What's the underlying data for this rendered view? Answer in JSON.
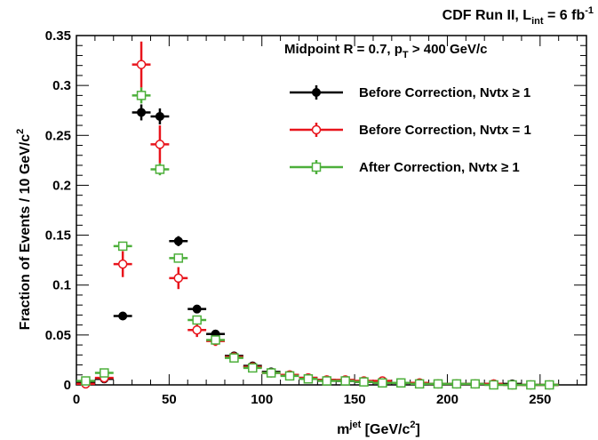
{
  "header": {
    "run_label_prefix": "CDF Run II, L",
    "run_label_sub": "int",
    "run_label_mid": " = 6 fb",
    "run_label_sup": "-1"
  },
  "legend": {
    "title_prefix": "Midpoint R = 0.7, p",
    "title_sub": "T",
    "title_suffix": " > 400 GeV/c",
    "entries": [
      {
        "label": "Before Correction, Nvtx ≥ 1",
        "color": "#000000",
        "marker": "filled-circle"
      },
      {
        "label": "Before Correction, Nvtx = 1",
        "color": "#e8141c",
        "marker": "open-circle"
      },
      {
        "label": "After Correction, Nvtx ≥ 1",
        "color": "#4caf3a",
        "marker": "open-square"
      }
    ]
  },
  "axes": {
    "ylabel_main": "Fraction of Events / 10 GeV/c",
    "ylabel_sup": "2",
    "xlabel_prefix": "m",
    "xlabel_sup": "jet",
    "xlabel_mid": " [GeV/c",
    "xlabel_sup2": "2",
    "xlabel_end": "]"
  },
  "chart_data": {
    "type": "scatter",
    "xlim": [
      0,
      275
    ],
    "ylim": [
      0,
      0.35
    ],
    "x_ticks": [
      0,
      50,
      100,
      150,
      200,
      250
    ],
    "y_ticks": [
      0,
      0.05,
      0.1,
      0.15,
      0.2,
      0.25,
      0.3,
      0.35
    ],
    "x_tick_labels": [
      "0",
      "50",
      "100",
      "150",
      "200",
      "250"
    ],
    "y_tick_labels": [
      "0",
      "0.05",
      "0.1",
      "0.15",
      "0.2",
      "0.25",
      "0.3",
      "0.35"
    ],
    "x_bin_half_width": 5,
    "x": [
      5,
      15,
      25,
      35,
      45,
      55,
      65,
      75,
      85,
      95,
      105,
      115,
      125,
      135,
      145,
      155,
      165,
      175,
      185,
      195,
      205,
      215,
      225,
      235,
      245,
      255
    ],
    "series": [
      {
        "name": "Before Correction, Nvtx ≥ 1",
        "color": "#000000",
        "marker": "filled-circle",
        "values": [
          0.002,
          0.006,
          0.069,
          0.273,
          0.269,
          0.144,
          0.076,
          0.051,
          0.029,
          0.019,
          0.013,
          0.01,
          0.007,
          0.005,
          0.004,
          0.003,
          0.002,
          0.002,
          0.002,
          0.001,
          0.001,
          0.001,
          0.001,
          0.001,
          0.0,
          0.0
        ],
        "errors": [
          0.001,
          0.002,
          0.003,
          0.008,
          0.008,
          0.005,
          0.003,
          0.003,
          0.002,
          0.002,
          0.001,
          0.001,
          0.001,
          0.001,
          0.001,
          0.001,
          0.001,
          0.001,
          0.001,
          0.001,
          0.001,
          0.001,
          0.001,
          0.001,
          0.001,
          0.001
        ]
      },
      {
        "name": "Before Correction, Nvtx = 1",
        "color": "#e8141c",
        "marker": "open-circle",
        "values": [
          0.001,
          0.007,
          0.121,
          0.321,
          0.241,
          0.107,
          0.055,
          0.044,
          0.028,
          0.018,
          0.012,
          0.01,
          0.007,
          0.005,
          0.005,
          0.004,
          0.004,
          0.002,
          0.002,
          0.001,
          0.001,
          0.001,
          0.001,
          0.0,
          0.0,
          0.0
        ],
        "errors": [
          0.002,
          0.005,
          0.013,
          0.023,
          0.019,
          0.011,
          0.007,
          0.005,
          0.004,
          0.003,
          0.002,
          0.002,
          0.002,
          0.002,
          0.001,
          0.001,
          0.001,
          0.001,
          0.001,
          0.001,
          0.001,
          0.001,
          0.001,
          0.001,
          0.001,
          0.001
        ]
      },
      {
        "name": "After Correction, Nvtx ≥ 1",
        "color": "#4caf3a",
        "marker": "open-square",
        "values": [
          0.004,
          0.012,
          0.139,
          0.29,
          0.216,
          0.127,
          0.065,
          0.045,
          0.027,
          0.017,
          0.012,
          0.009,
          0.006,
          0.004,
          0.004,
          0.003,
          0.002,
          0.002,
          0.001,
          0.001,
          0.001,
          0.001,
          0.0,
          0.0,
          0.0,
          0.0
        ],
        "errors": [
          0.001,
          0.002,
          0.004,
          0.008,
          0.006,
          0.004,
          0.003,
          0.002,
          0.002,
          0.002,
          0.001,
          0.001,
          0.001,
          0.001,
          0.001,
          0.001,
          0.001,
          0.001,
          0.001,
          0.001,
          0.001,
          0.001,
          0.001,
          0.001,
          0.001,
          0.001
        ]
      }
    ],
    "grid": false,
    "legend_position": "top-right"
  }
}
